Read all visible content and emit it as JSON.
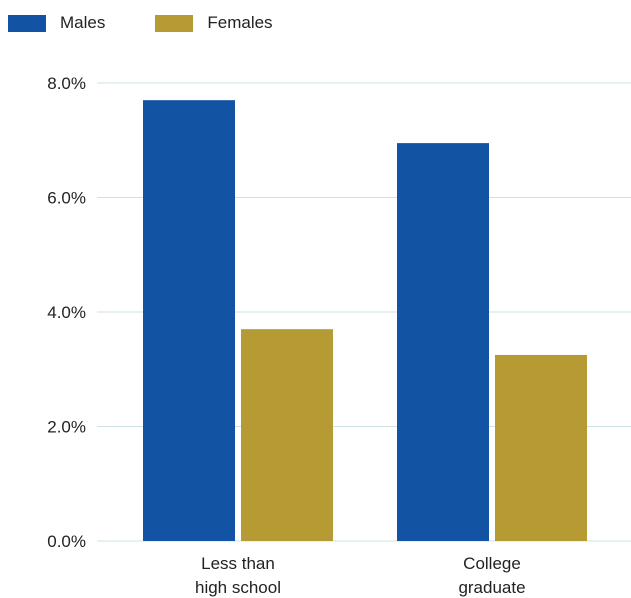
{
  "colors": {
    "males": "#1353a3",
    "females": "#b69a33",
    "grid": "#cfe0e6"
  },
  "legend": [
    {
      "label": "Males",
      "color_key": "males"
    },
    {
      "label": "Females",
      "color_key": "females"
    }
  ],
  "chart_data": {
    "type": "bar",
    "categories": [
      [
        "Less than",
        "high school"
      ],
      [
        "College",
        "graduate"
      ]
    ],
    "series": [
      {
        "name": "Males",
        "values": [
          7.7,
          6.95
        ]
      },
      {
        "name": "Females",
        "values": [
          3.7,
          3.25
        ]
      }
    ],
    "ylim": [
      0,
      8
    ],
    "yticks": [
      0,
      2,
      4,
      6,
      8
    ],
    "ytick_labels": [
      "0.0%",
      "2.0%",
      "4.0%",
      "6.0%",
      "8.0%"
    ],
    "grid": true,
    "legend_position": "top-left"
  }
}
